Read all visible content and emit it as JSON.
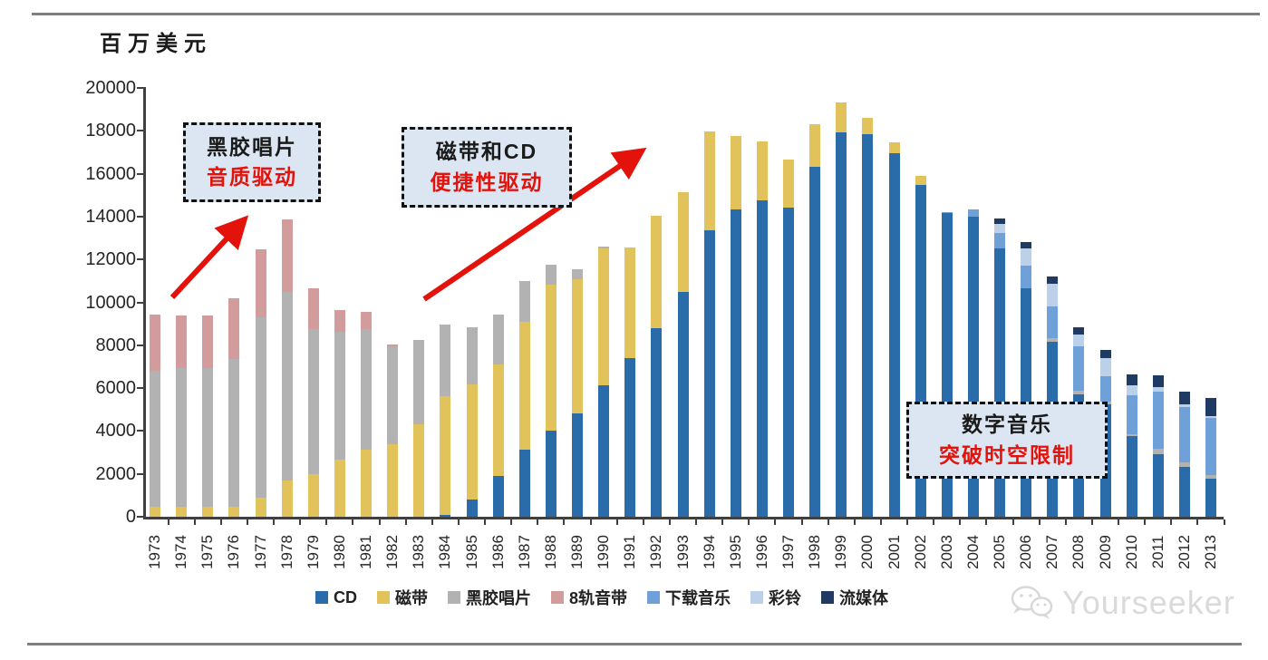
{
  "page": {
    "unit_label": "百万美元",
    "watermark": "Yourseeker"
  },
  "chart_data": {
    "type": "bar",
    "stacked": true,
    "title": "",
    "xlabel": "",
    "ylabel": "百万美元",
    "ylim": [
      0,
      20000
    ],
    "yticks": [
      0,
      2000,
      4000,
      6000,
      8000,
      10000,
      12000,
      14000,
      16000,
      18000,
      20000
    ],
    "grid": false,
    "legend_position": "bottom",
    "categories": [
      "1973",
      "1974",
      "1975",
      "1976",
      "1977",
      "1978",
      "1979",
      "1980",
      "1981",
      "1982",
      "1983",
      "1984",
      "1985",
      "1986",
      "1987",
      "1988",
      "1989",
      "1990",
      "1991",
      "1992",
      "1993",
      "1994",
      "1995",
      "1996",
      "1997",
      "1998",
      "1999",
      "2000",
      "2001",
      "2002",
      "2003",
      "2004",
      "2005",
      "2006",
      "2007",
      "2008",
      "2009",
      "2010",
      "2011",
      "2012",
      "2013"
    ],
    "series": [
      {
        "name": "CD",
        "color": "#2a6ba9",
        "values": [
          0,
          0,
          0,
          0,
          0,
          0,
          0,
          0,
          0,
          0,
          0,
          100,
          800,
          1890,
          3120,
          4000,
          4820,
          6150,
          7400,
          8800,
          10490,
          13360,
          14340,
          14760,
          14410,
          16340,
          17940,
          17840,
          16950,
          15490,
          14150,
          14000,
          12520,
          10660,
          8180,
          5710,
          5250,
          3750,
          2930,
          2320,
          1790
        ]
      },
      {
        "name": "磁带",
        "color": "#e2c35b",
        "values": [
          450,
          450,
          450,
          450,
          900,
          1700,
          1970,
          2650,
          3140,
          3370,
          4300,
          5520,
          5370,
          5210,
          5970,
          6840,
          6260,
          6350,
          5150,
          5250,
          4660,
          4590,
          3440,
          2750,
          2230,
          1960,
          1380,
          760,
          520,
          400,
          0,
          0,
          0,
          0,
          0,
          0,
          0,
          0,
          0,
          0,
          0
        ]
      },
      {
        "name": "黑胶唱片",
        "color": "#b2b2b2",
        "values": [
          6350,
          6470,
          6470,
          6890,
          8400,
          8790,
          6770,
          5990,
          5600,
          4580,
          3950,
          3360,
          2660,
          2310,
          1890,
          930,
          460,
          90,
          0,
          0,
          0,
          0,
          0,
          0,
          0,
          0,
          0,
          0,
          0,
          0,
          0,
          0,
          0,
          0,
          140,
          170,
          100,
          100,
          240,
          210,
          140
        ]
      },
      {
        "name": "8轨音带",
        "color": "#d29c9c",
        "values": [
          2650,
          2480,
          2460,
          2870,
          3180,
          3390,
          1920,
          1010,
          800,
          100,
          0,
          0,
          0,
          0,
          0,
          0,
          0,
          0,
          0,
          0,
          0,
          0,
          0,
          0,
          0,
          0,
          0,
          0,
          0,
          0,
          0,
          0,
          0,
          0,
          0,
          0,
          0,
          0,
          0,
          0,
          0
        ]
      },
      {
        "name": "下载音乐",
        "color": "#6fa0d8",
        "values": [
          0,
          0,
          0,
          0,
          0,
          0,
          0,
          0,
          0,
          0,
          0,
          0,
          0,
          0,
          0,
          0,
          0,
          0,
          0,
          0,
          0,
          0,
          0,
          0,
          0,
          0,
          0,
          0,
          0,
          0,
          50,
          330,
          710,
          1060,
          1480,
          2090,
          1210,
          1800,
          2680,
          2570,
          2680
        ]
      },
      {
        "name": "彩铃",
        "color": "#bdd0e9",
        "values": [
          0,
          0,
          0,
          0,
          0,
          0,
          0,
          0,
          0,
          0,
          0,
          0,
          0,
          0,
          0,
          0,
          0,
          0,
          0,
          0,
          0,
          0,
          0,
          0,
          0,
          0,
          0,
          0,
          0,
          0,
          0,
          0,
          420,
          780,
          1060,
          540,
          850,
          490,
          210,
          140,
          100
        ]
      },
      {
        "name": "流媒体",
        "color": "#1f3a63",
        "values": [
          0,
          0,
          0,
          0,
          0,
          0,
          0,
          0,
          0,
          0,
          0,
          0,
          0,
          0,
          0,
          0,
          0,
          0,
          0,
          0,
          0,
          0,
          0,
          0,
          0,
          0,
          0,
          0,
          0,
          0,
          0,
          0,
          280,
          310,
          360,
          340,
          350,
          490,
          540,
          610,
          850
        ]
      }
    ],
    "annotations": [
      {
        "line1": "黑胶唱片",
        "line2": "音质驱动"
      },
      {
        "line1": "磁带和CD",
        "line2": "便捷性驱动"
      },
      {
        "line1": "数字音乐",
        "line2": "突破时空限制"
      }
    ]
  }
}
